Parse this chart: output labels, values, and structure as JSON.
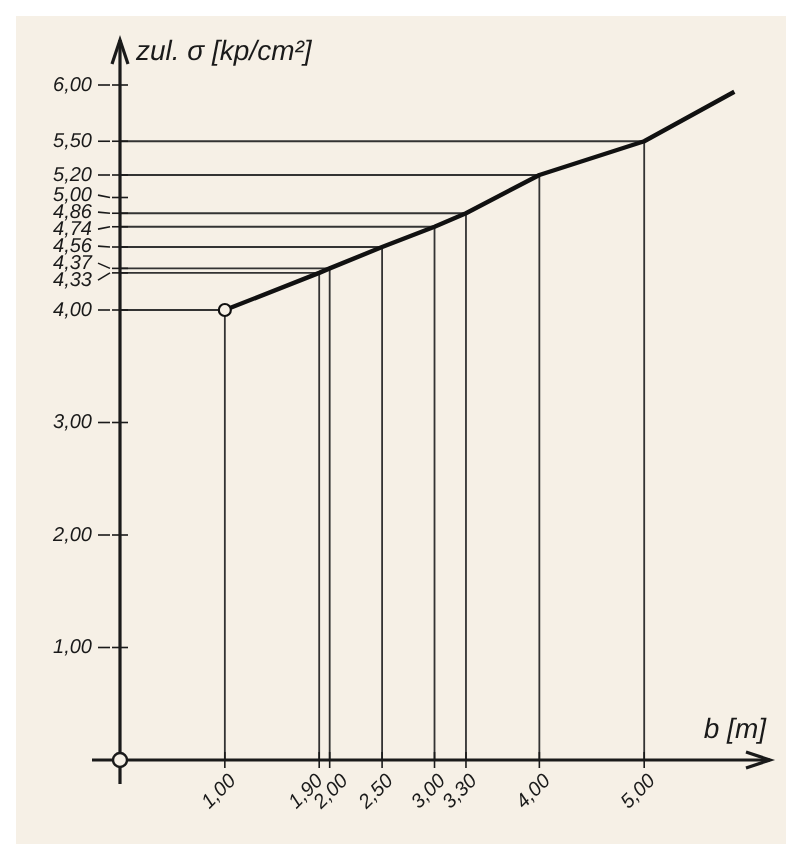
{
  "chart_data": {
    "type": "line",
    "xlabel": "b [m]",
    "ylabel": "zul. σ [kp/cm²]",
    "x": [
      1.0,
      1.9,
      2.0,
      2.5,
      3.0,
      3.3,
      4.0,
      5.0,
      5.86
    ],
    "series": [
      {
        "color": "#111111",
        "values": [
          4.0,
          4.33,
          4.37,
          4.56,
          4.74,
          4.86,
          5.2,
          5.5,
          5.94
        ]
      },
      {
        "type": "scatter",
        "marker": "circle",
        "color": "#111111",
        "x": [
          1.0
        ],
        "values": [
          4.0
        ]
      },
      {
        "type": "line",
        "color": "#333333",
        "x": [
          1.0,
          1.0,
          0
        ],
        "values": [
          0,
          4.0,
          4.0
        ]
      },
      {
        "type": "line",
        "color": "#333333",
        "x": [
          1.9,
          1.9,
          0
        ],
        "values": [
          0,
          4.33,
          4.33
        ]
      },
      {
        "type": "line",
        "color": "#333333",
        "x": [
          2.0,
          2.0,
          0
        ],
        "values": [
          0,
          4.37,
          4.37
        ]
      },
      {
        "type": "line",
        "color": "#333333",
        "x": [
          2.5,
          2.5,
          0
        ],
        "values": [
          0,
          4.56,
          4.56
        ]
      },
      {
        "type": "line",
        "color": "#333333",
        "x": [
          3.0,
          3.0,
          0
        ],
        "values": [
          0,
          4.74,
          4.74
        ]
      },
      {
        "type": "line",
        "color": "#333333",
        "x": [
          3.3,
          3.3,
          0
        ],
        "values": [
          0,
          4.86,
          4.86
        ]
      },
      {
        "type": "line",
        "color": "#333333",
        "x": [
          4.0,
          4.0,
          0
        ],
        "values": [
          0,
          5.2,
          5.2
        ]
      },
      {
        "type": "line",
        "color": "#333333",
        "x": [
          5.0,
          5.0,
          0
        ],
        "values": [
          0,
          5.5,
          5.5
        ]
      }
    ],
    "xlim": [
      0,
      6.2
    ],
    "ylim": [
      0,
      6.4
    ],
    "grid": false,
    "legend": false,
    "xticks": [
      {
        "value": 1,
        "label": "1,00"
      },
      {
        "value": 1.9,
        "label": "1,90"
      },
      {
        "value": 2,
        "label": "2,00"
      },
      {
        "value": 2.5,
        "label": "2,50"
      },
      {
        "value": 3,
        "label": "3,00"
      },
      {
        "value": 3.3,
        "label": "3,30"
      },
      {
        "value": 4,
        "label": "4,00"
      },
      {
        "value": 5,
        "label": "5,00"
      }
    ],
    "yticks": [
      {
        "value": 1,
        "label": "1,00"
      },
      {
        "value": 2,
        "label": "2,00"
      },
      {
        "value": 3,
        "label": "3,00"
      },
      {
        "value": 4,
        "label": "4,00"
      },
      {
        "value": 4.33,
        "label": "4,33"
      },
      {
        "value": 4.37,
        "label": "4,37"
      },
      {
        "value": 4.56,
        "label": "4,56"
      },
      {
        "value": 4.74,
        "label": "4,74"
      },
      {
        "value": 4.86,
        "label": "4,86"
      },
      {
        "value": 5,
        "label": "5,00"
      },
      {
        "value": 5.2,
        "label": "5,20"
      },
      {
        "value": 5.5,
        "label": "5,50"
      },
      {
        "value": 6,
        "label": "6,00"
      }
    ],
    "line_style": "solid"
  }
}
